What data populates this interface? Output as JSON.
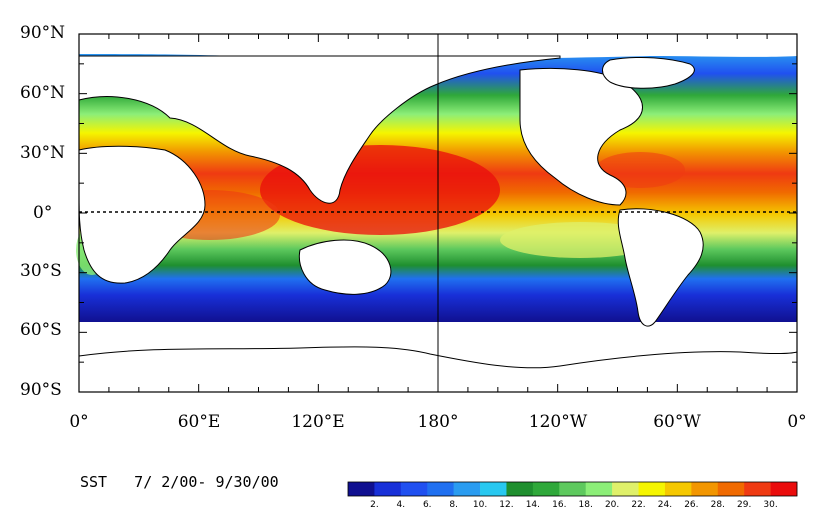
{
  "caption": "SST   7/ 2/00- 9/30/00",
  "y_axis": {
    "ticks": [
      "90°N",
      "60°N",
      "30°N",
      "0°",
      "30°S",
      "60°S",
      "90°S"
    ]
  },
  "x_axis": {
    "ticks": [
      "0°",
      "60°E",
      "120°E",
      "180°",
      "120°W",
      "60°W",
      "0°"
    ]
  },
  "color_scale": {
    "labels": [
      "2.",
      "4.",
      "6.",
      "8.",
      "10.",
      "12.",
      "14.",
      "16.",
      "18.",
      "20.",
      "22.",
      "24.",
      "26.",
      "28.",
      "29.",
      "30."
    ],
    "colors": [
      "#101090",
      "#1830d8",
      "#2050f0",
      "#2070f0",
      "#2a9cf0",
      "#28c8f0",
      "#1f8f2f",
      "#2fa83a",
      "#5ec95e",
      "#8cee78",
      "#dff06a",
      "#f5f500",
      "#f5c800",
      "#f29600",
      "#f06a00",
      "#ef3a12",
      "#ea0c0c"
    ]
  },
  "colors": {
    "land": "#ffffff",
    "ice": "#ffffff",
    "coast": "#000000",
    "frame": "#000000"
  }
}
